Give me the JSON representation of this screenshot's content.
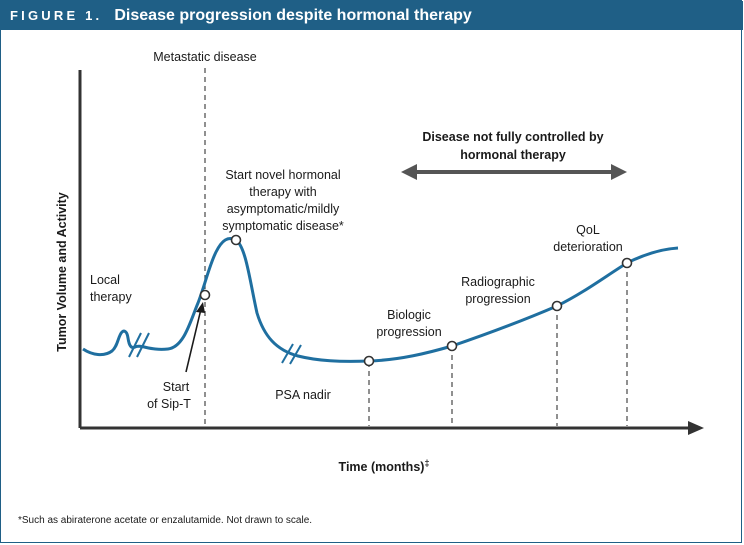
{
  "header": {
    "figure_label": "FIGURE 1.",
    "title": "Disease progression despite hormonal therapy"
  },
  "axes": {
    "y_label": "Tumor Volume and Activity",
    "x_label": "Time (months)",
    "x_label_sup": "‡"
  },
  "labels": {
    "metastatic": "Metastatic disease",
    "local_therapy_1": "Local",
    "local_therapy_2": "therapy",
    "start_sipt_1": "Start",
    "start_sipt_2": "of Sip-T",
    "novel_1": "Start novel hormonal",
    "novel_2": "therapy with",
    "novel_3": "asymptomatic/mildly",
    "novel_4": "symptomatic disease*",
    "psa_nadir": "PSA nadir",
    "biologic_1": "Biologic",
    "biologic_2": "progression",
    "radiographic_1": "Radiographic",
    "radiographic_2": "progression",
    "qol_1": "QoL",
    "qol_2": "deterioration",
    "not_controlled_1": "Disease not fully controlled by",
    "not_controlled_2": "hormonal therapy"
  },
  "footnote": "*Such as abiraterone acetate or enzalutamide. Not drawn to scale.",
  "colors": {
    "curve": "#1f6fa0",
    "header": "#1f5f86",
    "axis": "#333333",
    "arrow": "#555555"
  }
}
